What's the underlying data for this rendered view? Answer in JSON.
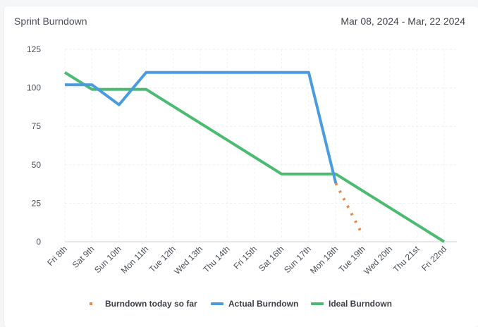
{
  "header": {
    "title": "Sprint Burndown",
    "date_range": "Mar 08, 2024 - Mar, 22 2024"
  },
  "chart_data": {
    "type": "line",
    "title": "Sprint Burndown",
    "xlabel": "",
    "ylabel": "",
    "categories": [
      "Fri 8th",
      "Sat 9th",
      "Sun 10th",
      "Mon 11th",
      "Tue 12th",
      "Wed 13th",
      "Thu 14th",
      "Fri 15th",
      "Sat 16th",
      "Sun 17th",
      "Mon 18th",
      "Tue 19th",
      "Wed 20th",
      "Thu 21st",
      "Fri 22nd"
    ],
    "ylim": [
      0,
      125
    ],
    "yticks": [
      0,
      25,
      50,
      75,
      100,
      125
    ],
    "grid": true,
    "legend_position": "bottom",
    "series": [
      {
        "name": "Burndown today so far",
        "color": "#e8894a",
        "style": "dotted",
        "points": [
          [
            10,
            38
          ],
          [
            11,
            4
          ]
        ]
      },
      {
        "name": "Actual Burndown",
        "color": "#4a9be0",
        "style": "solid",
        "points": [
          [
            0,
            102
          ],
          [
            1,
            102
          ],
          [
            2,
            89
          ],
          [
            3,
            110
          ],
          [
            4,
            110
          ],
          [
            5,
            110
          ],
          [
            6,
            110
          ],
          [
            7,
            110
          ],
          [
            8,
            110
          ],
          [
            9,
            110
          ],
          [
            10,
            38
          ]
        ]
      },
      {
        "name": "Ideal Burndown",
        "color": "#4cbb72",
        "style": "solid",
        "points": [
          [
            0,
            110
          ],
          [
            1,
            99
          ],
          [
            2,
            99
          ],
          [
            3,
            99
          ],
          [
            4,
            88
          ],
          [
            5,
            77
          ],
          [
            6,
            66
          ],
          [
            7,
            55
          ],
          [
            8,
            44
          ],
          [
            9,
            44
          ],
          [
            10,
            44
          ],
          [
            11,
            33
          ],
          [
            12,
            22
          ],
          [
            13,
            11
          ],
          [
            14,
            0
          ]
        ]
      }
    ]
  }
}
